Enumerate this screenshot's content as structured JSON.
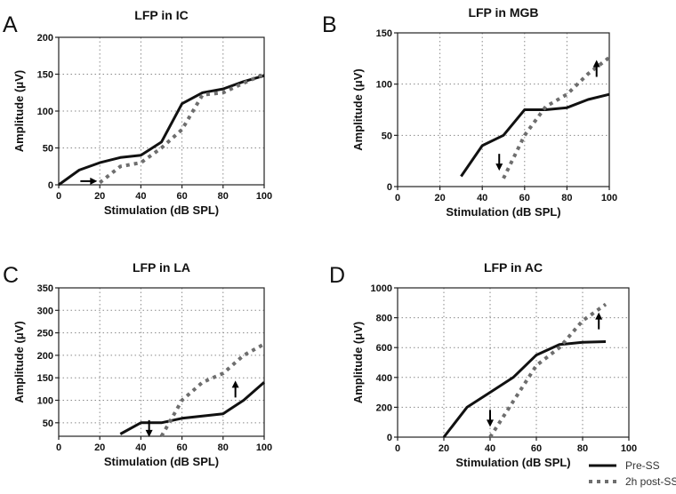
{
  "legend": {
    "pre_label": "Pre-SS",
    "post_label": "2h post-SS",
    "pre_color": "#111111",
    "post_color": "#6e6e6e"
  },
  "chart_data": [
    {
      "panel": "A",
      "type": "line",
      "title": "LFP in IC",
      "xlabel": "Stimulation (dB SPL)",
      "ylabel": "Amplitude (μV)",
      "xlim": [
        0,
        100
      ],
      "ylim": [
        0,
        200
      ],
      "xticks": [
        0,
        20,
        40,
        60,
        80,
        100
      ],
      "yticks": [
        0,
        50,
        100,
        150,
        200
      ],
      "grid": true,
      "series": [
        {
          "name": "Pre-SS",
          "style": "solid",
          "x": [
            0,
            10,
            20,
            30,
            40,
            50,
            60,
            70,
            80,
            90,
            100
          ],
          "y": [
            0,
            20,
            30,
            37,
            40,
            58,
            110,
            125,
            130,
            140,
            148
          ]
        },
        {
          "name": "2h post-SS",
          "style": "dashed",
          "x": [
            20,
            30,
            40,
            50,
            60,
            70,
            80,
            90,
            100
          ],
          "y": [
            3,
            25,
            30,
            50,
            75,
            122,
            125,
            138,
            150
          ]
        }
      ],
      "annotations": [
        {
          "type": "arrow",
          "direction": "right",
          "x": 14,
          "y": 5
        }
      ]
    },
    {
      "panel": "B",
      "type": "line",
      "title": "LFP in MGB",
      "xlabel": "Stimulation (dB SPL)",
      "ylabel": "Amplitude (μV)",
      "xlim": [
        0,
        100
      ],
      "ylim": [
        0,
        150
      ],
      "xticks": [
        0,
        20,
        40,
        60,
        80,
        100
      ],
      "yticks": [
        0,
        50,
        100,
        150
      ],
      "grid": true,
      "series": [
        {
          "name": "Pre-SS",
          "style": "solid",
          "x": [
            30,
            40,
            50,
            60,
            70,
            80,
            90,
            100
          ],
          "y": [
            10,
            40,
            50,
            75,
            75,
            77,
            85,
            90
          ]
        },
        {
          "name": "2h post-SS",
          "style": "dashed",
          "x": [
            50,
            60,
            70,
            80,
            90,
            100
          ],
          "y": [
            8,
            50,
            78,
            90,
            110,
            126
          ]
        }
      ],
      "annotations": [
        {
          "type": "arrow",
          "direction": "down",
          "x": 48,
          "y": 25
        },
        {
          "type": "arrow",
          "direction": "up",
          "x": 94,
          "y": 114
        }
      ]
    },
    {
      "panel": "C",
      "type": "line",
      "title": "LFP in LA",
      "xlabel": "Stimulation (dB SPL)",
      "ylabel": "Amplitude (μV)",
      "xlim": [
        0,
        100
      ],
      "ylim": [
        20,
        350
      ],
      "xticks": [
        0,
        20,
        40,
        60,
        80,
        100
      ],
      "yticks": [
        50,
        100,
        150,
        200,
        250,
        300,
        350
      ],
      "grid": true,
      "series": [
        {
          "name": "Pre-SS",
          "style": "solid",
          "x": [
            30,
            40,
            50,
            60,
            70,
            80,
            90,
            100
          ],
          "y": [
            25,
            50,
            50,
            60,
            65,
            70,
            100,
            140
          ]
        },
        {
          "name": "2h post-SS",
          "style": "dashed",
          "x": [
            50,
            55,
            60,
            70,
            80,
            90,
            100
          ],
          "y": [
            20,
            60,
            100,
            140,
            160,
            200,
            225
          ]
        }
      ],
      "annotations": [
        {
          "type": "arrow",
          "direction": "down",
          "x": 44,
          "y": 40
        },
        {
          "type": "arrow",
          "direction": "up",
          "x": 86,
          "y": 122
        }
      ]
    },
    {
      "panel": "D",
      "type": "line",
      "title": "LFP in  AC",
      "xlabel": "Stimulation (dB SPL)",
      "ylabel": "Amplitude (μV)",
      "xlim": [
        0,
        100
      ],
      "ylim": [
        0,
        1000
      ],
      "xticks": [
        0,
        20,
        40,
        60,
        80,
        100
      ],
      "yticks": [
        0,
        200,
        400,
        600,
        800,
        1000
      ],
      "grid": true,
      "series": [
        {
          "name": "Pre-SS",
          "style": "solid",
          "x": [
            20,
            30,
            40,
            50,
            60,
            70,
            80,
            90
          ],
          "y": [
            0,
            200,
            300,
            400,
            550,
            620,
            635,
            640
          ]
        },
        {
          "name": "2h post-SS",
          "style": "dashed",
          "x": [
            40,
            50,
            60,
            70,
            80,
            90
          ],
          "y": [
            0,
            240,
            480,
            600,
            780,
            890
          ]
        }
      ],
      "annotations": [
        {
          "type": "arrow",
          "direction": "down",
          "x": 40,
          "y": 135
        },
        {
          "type": "arrow",
          "direction": "up",
          "x": 87,
          "y": 770
        }
      ]
    }
  ]
}
